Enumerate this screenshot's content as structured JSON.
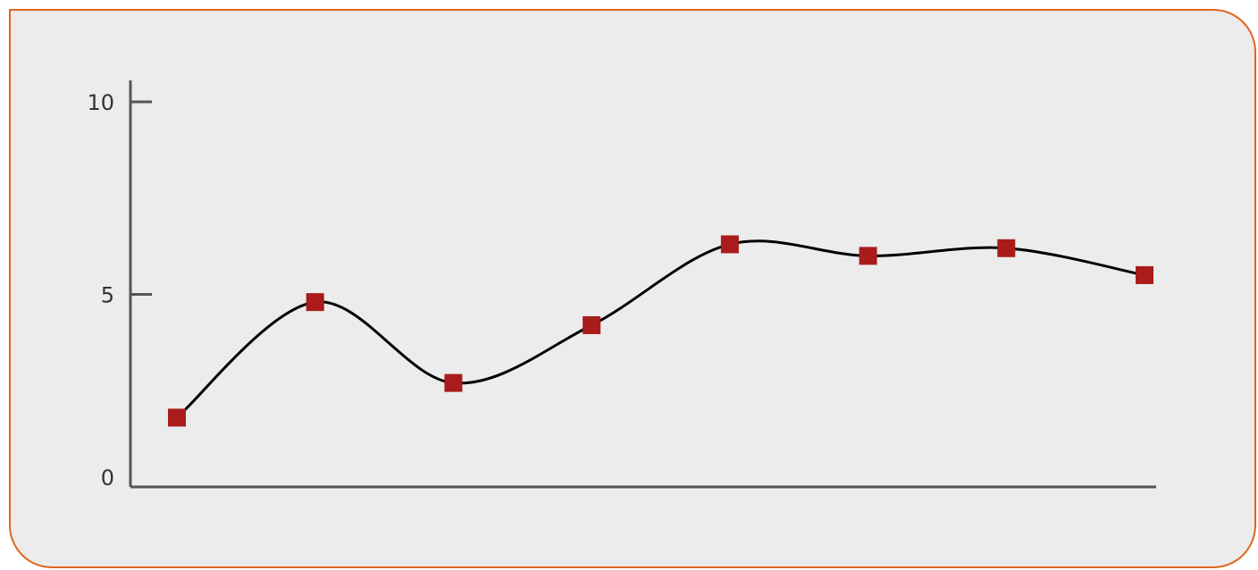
{
  "chart_data": {
    "type": "line",
    "smooth": true,
    "title": "",
    "xlabel": "",
    "ylabel": "",
    "ylim": [
      0,
      10
    ],
    "y_ticks": [
      0,
      5,
      10
    ],
    "x_ticks": [],
    "grid": false,
    "legend": "none",
    "series": [
      {
        "marker": "square",
        "x": [
          1,
          2,
          3,
          4,
          5,
          6,
          7,
          8
        ],
        "values": [
          1.8,
          4.8,
          2.7,
          4.2,
          6.3,
          6.0,
          6.2,
          5.5
        ]
      }
    ],
    "colors": {
      "line": "#000000",
      "marker": "#aa1c1c",
      "axis": "#555555",
      "border": "#e0661f",
      "panel": "#ececec"
    }
  }
}
